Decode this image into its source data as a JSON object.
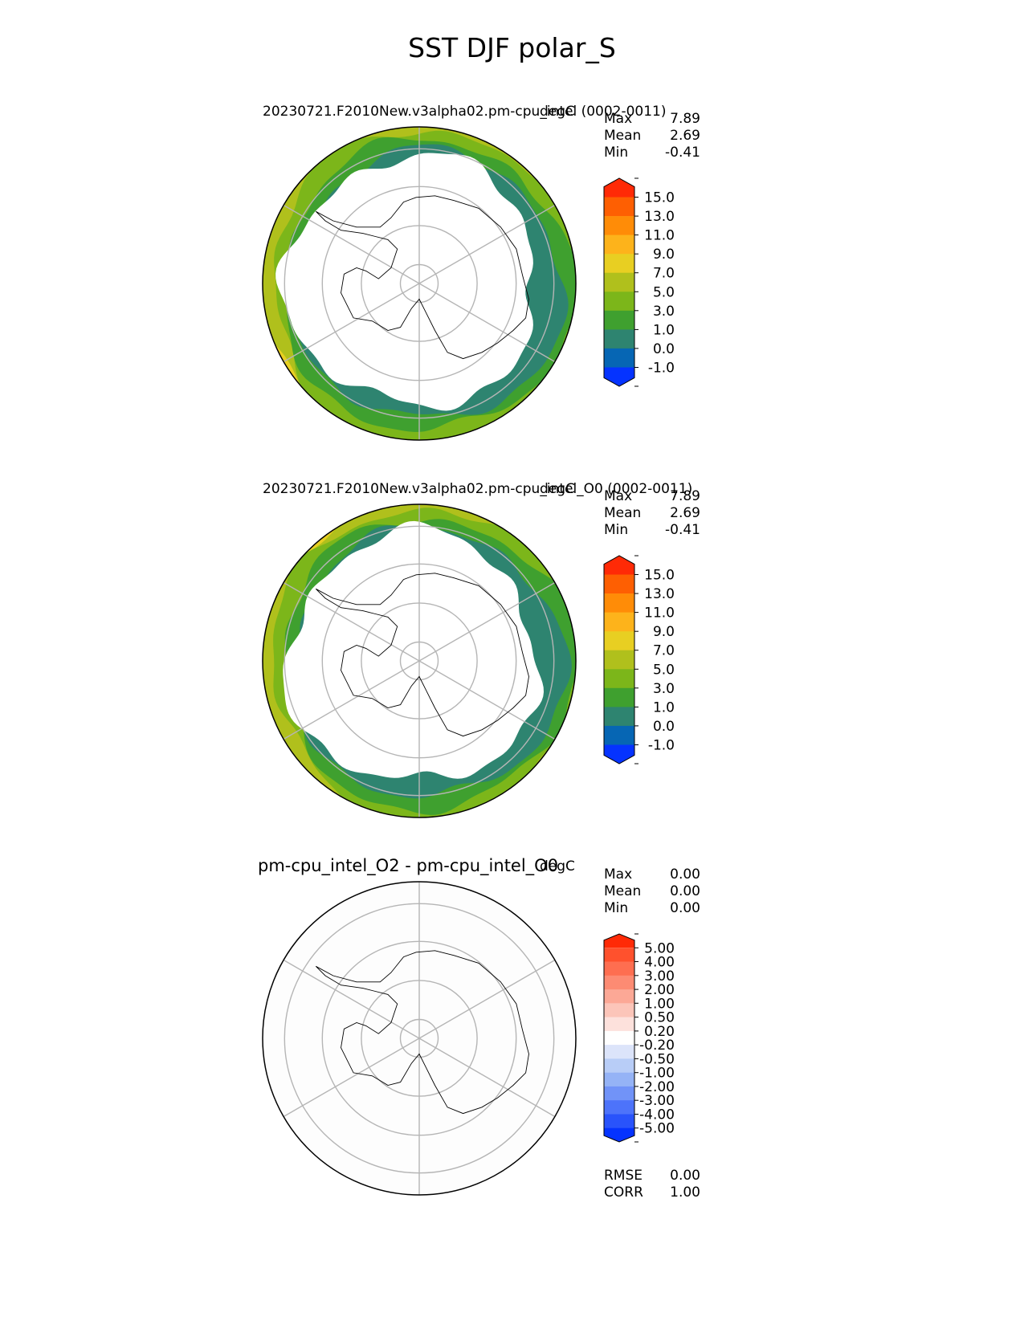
{
  "figure": {
    "title": "SST DJF polar_S"
  },
  "chart_data": [
    {
      "type": "heatmap",
      "projection": "south polar stereographic",
      "title": "20230721.F2010New.v3alpha02.pm-cpu_intel (0002-0011)",
      "units": "degC",
      "stats": [
        {
          "label": "Max",
          "value": "7.89"
        },
        {
          "label": "Mean",
          "value": "2.69"
        },
        {
          "label": "Min",
          "value": "-0.41"
        }
      ],
      "colorbar": {
        "levels": [
          -1.0,
          0.0,
          1.0,
          3.0,
          5.0,
          7.0,
          9.0,
          11.0,
          13.0,
          15.0
        ],
        "tick_labels": [
          "15.0",
          "13.0",
          "11.0",
          "9.0",
          "7.0",
          "5.0",
          "3.0",
          "1.0",
          "0.0",
          "-1.0"
        ],
        "colors": [
          "#0533ff",
          "#0666b4",
          "#2e8470",
          "#3fa02f",
          "#7cb61a",
          "#b0c01c",
          "#e8cf22",
          "#fdb31b",
          "#ff8c07",
          "#fe5f02",
          "#ff2a06"
        ],
        "extend": "both"
      },
      "bands_from_coast": [
        "#2e8470",
        "#3fa02f",
        "#7cb61a",
        "#b0c01c",
        "#e8cf22"
      ]
    },
    {
      "type": "heatmap",
      "projection": "south polar stereographic",
      "title": "20230721.F2010New.v3alpha02.pm-cpu_intel_O0 (0002-0011)",
      "units": "degC",
      "stats": [
        {
          "label": "Max",
          "value": "7.89"
        },
        {
          "label": "Mean",
          "value": "2.69"
        },
        {
          "label": "Min",
          "value": "-0.41"
        }
      ],
      "colorbar": {
        "levels": [
          -1.0,
          0.0,
          1.0,
          3.0,
          5.0,
          7.0,
          9.0,
          11.0,
          13.0,
          15.0
        ],
        "tick_labels": [
          "15.0",
          "13.0",
          "11.0",
          "9.0",
          "7.0",
          "5.0",
          "3.0",
          "1.0",
          "0.0",
          "-1.0"
        ],
        "colors": [
          "#0533ff",
          "#0666b4",
          "#2e8470",
          "#3fa02f",
          "#7cb61a",
          "#b0c01c",
          "#e8cf22",
          "#fdb31b",
          "#ff8c07",
          "#fe5f02",
          "#ff2a06"
        ],
        "extend": "both"
      },
      "bands_from_coast": [
        "#2e8470",
        "#3fa02f",
        "#7cb61a",
        "#b0c01c",
        "#e8cf22"
      ]
    },
    {
      "type": "heatmap",
      "projection": "south polar stereographic",
      "title": "pm-cpu_intel_O2 - pm-cpu_intel_O0",
      "units": "degC",
      "stats": [
        {
          "label": "Max",
          "value": "0.00"
        },
        {
          "label": "Mean",
          "value": "0.00"
        },
        {
          "label": "Min",
          "value": "0.00"
        }
      ],
      "colorbar": {
        "levels": [
          -5.0,
          -4.0,
          -3.0,
          -2.0,
          -1.0,
          -0.5,
          -0.2,
          0.2,
          0.5,
          1.0,
          2.0,
          3.0,
          4.0,
          5.0
        ],
        "tick_labels": [
          "5.00",
          "4.00",
          "3.00",
          "2.00",
          "1.00",
          "0.50",
          "0.20",
          "-0.20",
          "-0.50",
          "-1.00",
          "-2.00",
          "-3.00",
          "-4.00",
          "-5.00"
        ],
        "colors": [
          "#0533ff",
          "#2953fb",
          "#4d73fa",
          "#7193f8",
          "#95b3f6",
          "#b8cdf7",
          "#dce4fa",
          "#ffffff",
          "#fde1dc",
          "#fcc5b9",
          "#fca896",
          "#fd8b73",
          "#fe6e50",
          "#ff512d",
          "#ff2a06"
        ],
        "extend": "both"
      },
      "bottom_stats": [
        {
          "label": "RMSE",
          "value": "0.00"
        },
        {
          "label": "CORR",
          "value": "1.00"
        }
      ]
    }
  ]
}
